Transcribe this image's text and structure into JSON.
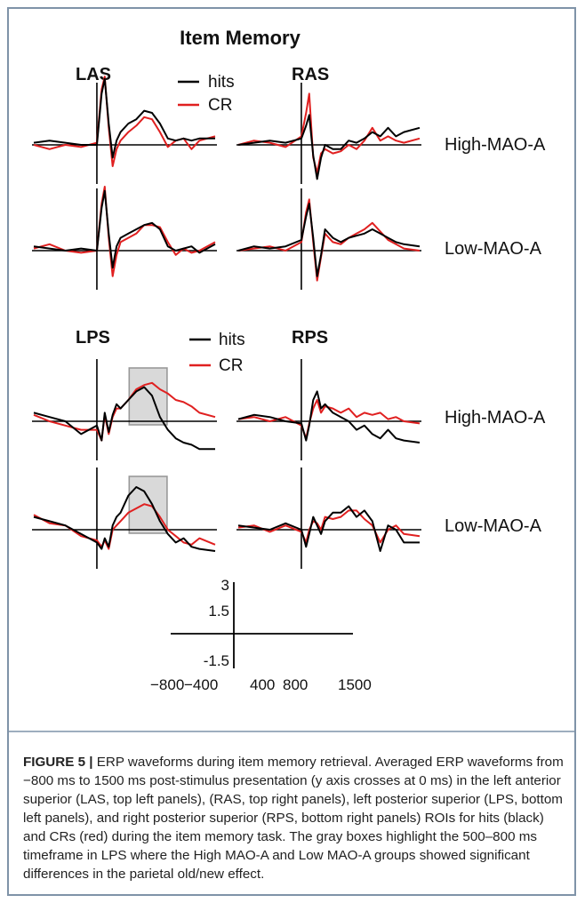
{
  "title": "Item Memory",
  "legend": {
    "hits": "hits",
    "cr": "CR"
  },
  "colors": {
    "hits": "#000000",
    "cr": "#e02020",
    "roi_box": "#d9d9d9",
    "frame": "#7f93a8"
  },
  "regions": {
    "las": "LAS",
    "ras": "RAS",
    "lps": "LPS",
    "rps": "RPS"
  },
  "groups": {
    "high": "High-MAO-A",
    "low": "Low-MAO-A"
  },
  "scale_bar": {
    "y_ticks": [
      "3",
      "1.5",
      "-1.5"
    ],
    "x_ticks": [
      "−800",
      "−400",
      "400",
      "800",
      "1500"
    ]
  },
  "caption": {
    "label": "FIGURE 5 |",
    "text": " ERP waveforms during item memory retrieval. Averaged ERP waveforms from −800 ms to 1500 ms post-stimulus presentation (y axis crosses at 0 ms) in the left anterior superior (LAS, top left panels), (RAS, top right panels), left posterior superior (LPS, bottom left panels), and right posterior superior (RPS, bottom right panels) ROIs for hits (black) and CRs (red) during the item memory task. The gray boxes highlight the 500–800 ms timeframe in LPS where the High MAO-A and Low MAO-A groups showed significant differences in the parietal old/new effect."
  },
  "chart_data": {
    "type": "line",
    "x_range_ms": [
      -800,
      1500
    ],
    "x_label": "",
    "y_label": "",
    "roi_highlight_ms": [
      500,
      800
    ],
    "panels": [
      {
        "region": "LAS",
        "group": "High-MAO-A",
        "x": [
          -800,
          -600,
          -400,
          -200,
          0,
          60,
          100,
          150,
          200,
          250,
          300,
          400,
          500,
          600,
          700,
          800,
          900,
          1000,
          1100,
          1200,
          1300,
          1500
        ],
        "series": [
          {
            "name": "hits",
            "values": [
              0.1,
              0.2,
              0.1,
              0.0,
              0.0,
              2.4,
              3.1,
              1.0,
              -0.6,
              0.2,
              0.6,
              1.0,
              1.2,
              1.6,
              1.5,
              1.0,
              0.3,
              0.2,
              0.3,
              0.2,
              0.3,
              0.3
            ]
          },
          {
            "name": "CR",
            "values": [
              0.0,
              -0.2,
              0.0,
              -0.1,
              0.1,
              2.6,
              3.2,
              0.8,
              -1.0,
              -0.2,
              0.2,
              0.6,
              0.9,
              1.3,
              1.2,
              0.6,
              -0.1,
              0.2,
              0.3,
              -0.2,
              0.2,
              0.4
            ]
          }
        ]
      },
      {
        "region": "RAS",
        "group": "High-MAO-A",
        "x": [
          -800,
          -600,
          -400,
          -200,
          0,
          60,
          100,
          150,
          200,
          250,
          300,
          400,
          500,
          600,
          700,
          800,
          900,
          1000,
          1100,
          1200,
          1300,
          1500
        ],
        "series": [
          {
            "name": "hits",
            "values": [
              0.0,
              0.1,
              0.2,
              0.1,
              0.3,
              0.9,
              1.4,
              -0.5,
              -1.6,
              -0.6,
              0.0,
              -0.2,
              -0.2,
              0.2,
              0.1,
              0.3,
              0.6,
              0.4,
              0.8,
              0.4,
              0.6,
              0.8
            ]
          },
          {
            "name": "CR",
            "values": [
              0.0,
              0.2,
              0.1,
              -0.1,
              0.4,
              1.5,
              2.4,
              -0.6,
              -1.3,
              -0.4,
              -0.2,
              -0.4,
              -0.3,
              0.0,
              -0.2,
              0.2,
              0.8,
              0.2,
              0.4,
              0.2,
              0.1,
              0.3
            ]
          }
        ]
      },
      {
        "region": "LAS",
        "group": "Low-MAO-A",
        "x": [
          -800,
          -600,
          -400,
          -200,
          0,
          60,
          100,
          150,
          200,
          250,
          300,
          400,
          500,
          600,
          700,
          800,
          900,
          1000,
          1100,
          1200,
          1300,
          1500
        ],
        "series": [
          {
            "name": "hits",
            "values": [
              0.2,
              0.1,
              0.0,
              0.1,
              0.0,
              2.0,
              2.8,
              0.8,
              -0.8,
              0.2,
              0.6,
              0.8,
              1.0,
              1.2,
              1.3,
              1.0,
              0.2,
              0.0,
              0.1,
              0.2,
              -0.1,
              0.3
            ]
          },
          {
            "name": "CR",
            "values": [
              0.1,
              0.3,
              0.0,
              -0.1,
              0.0,
              2.2,
              3.0,
              0.6,
              -1.2,
              -0.2,
              0.4,
              0.6,
              0.8,
              1.2,
              1.2,
              1.1,
              0.4,
              -0.2,
              0.1,
              -0.1,
              0.0,
              0.4
            ]
          }
        ]
      },
      {
        "region": "RAS",
        "group": "Low-MAO-A",
        "x": [
          -800,
          -600,
          -400,
          -200,
          0,
          60,
          100,
          150,
          200,
          250,
          300,
          400,
          500,
          600,
          700,
          800,
          900,
          1000,
          1100,
          1200,
          1300,
          1500
        ],
        "series": [
          {
            "name": "hits",
            "values": [
              0.0,
              0.2,
              0.1,
              0.2,
              0.5,
              1.6,
              2.2,
              0.6,
              -1.2,
              -0.2,
              1.0,
              0.6,
              0.4,
              0.6,
              0.7,
              0.8,
              1.0,
              0.8,
              0.6,
              0.4,
              0.3,
              0.2
            ]
          },
          {
            "name": "CR",
            "values": [
              0.0,
              0.1,
              0.2,
              0.0,
              0.4,
              1.8,
              2.4,
              0.4,
              -1.4,
              -0.3,
              0.8,
              0.4,
              0.3,
              0.6,
              0.8,
              1.0,
              1.3,
              0.9,
              0.5,
              0.3,
              0.1,
              0.0
            ]
          }
        ]
      },
      {
        "region": "LPS",
        "group": "High-MAO-A",
        "x": [
          -800,
          -600,
          -400,
          -200,
          0,
          60,
          100,
          150,
          200,
          250,
          300,
          400,
          500,
          600,
          700,
          800,
          900,
          1000,
          1100,
          1200,
          1300,
          1500
        ],
        "series": [
          {
            "name": "hits",
            "values": [
              0.4,
              0.2,
              0.0,
              -0.6,
              -0.2,
              -0.9,
              0.4,
              -0.5,
              0.3,
              0.8,
              0.6,
              1.0,
              1.4,
              1.6,
              1.2,
              0.2,
              -0.4,
              -0.8,
              -1.0,
              -1.1,
              -1.3,
              -1.3
            ]
          },
          {
            "name": "CR",
            "values": [
              0.3,
              0.0,
              -0.2,
              -0.4,
              -0.4,
              -0.9,
              0.3,
              -0.6,
              0.2,
              0.6,
              0.6,
              1.0,
              1.5,
              1.7,
              1.8,
              1.5,
              1.3,
              1.0,
              0.9,
              0.7,
              0.4,
              0.2
            ]
          }
        ]
      },
      {
        "region": "RPS",
        "group": "High-MAO-A",
        "x": [
          -800,
          -600,
          -400,
          -200,
          0,
          60,
          100,
          150,
          200,
          250,
          300,
          400,
          500,
          600,
          700,
          800,
          900,
          1000,
          1100,
          1200,
          1300,
          1500
        ],
        "series": [
          {
            "name": "hits",
            "values": [
              0.1,
              0.3,
              0.2,
              0.0,
              -0.1,
              -0.9,
              -0.2,
              1.0,
              1.4,
              0.6,
              0.8,
              0.4,
              0.2,
              0.0,
              -0.4,
              -0.2,
              -0.6,
              -0.8,
              -0.4,
              -0.8,
              -0.9,
              -1.0
            ]
          },
          {
            "name": "CR",
            "values": [
              0.1,
              0.2,
              0.0,
              0.2,
              -0.2,
              -0.8,
              -0.1,
              0.6,
              1.0,
              0.4,
              0.7,
              0.6,
              0.4,
              0.6,
              0.2,
              0.4,
              0.3,
              0.4,
              0.1,
              0.2,
              0.0,
              -0.1
            ]
          }
        ]
      },
      {
        "region": "LPS",
        "group": "Low-MAO-A",
        "x": [
          -800,
          -600,
          -400,
          -200,
          0,
          60,
          100,
          150,
          200,
          250,
          300,
          400,
          500,
          600,
          700,
          800,
          900,
          1000,
          1100,
          1200,
          1300,
          1500
        ],
        "series": [
          {
            "name": "hits",
            "values": [
              0.6,
              0.4,
              0.2,
              -0.2,
              -0.6,
              -0.9,
              -0.4,
              -0.8,
              0.2,
              0.6,
              0.8,
              1.6,
              2.0,
              1.8,
              1.2,
              0.4,
              -0.2,
              -0.6,
              -0.4,
              -0.8,
              -0.9,
              -1.0
            ]
          },
          {
            "name": "CR",
            "values": [
              0.7,
              0.3,
              0.2,
              -0.3,
              -0.5,
              -0.8,
              -0.5,
              -0.9,
              0.0,
              0.2,
              0.4,
              0.8,
              1.0,
              1.2,
              1.1,
              0.6,
              0.0,
              -0.3,
              -0.6,
              -0.7,
              -0.4,
              -0.7
            ]
          }
        ]
      },
      {
        "region": "RPS",
        "group": "Low-MAO-A",
        "x": [
          -800,
          -600,
          -400,
          -200,
          0,
          60,
          100,
          150,
          200,
          250,
          300,
          400,
          500,
          600,
          700,
          800,
          900,
          1000,
          1100,
          1200,
          1300,
          1500
        ],
        "series": [
          {
            "name": "hits",
            "values": [
              0.2,
              0.1,
              0.0,
              0.3,
              0.0,
              -0.8,
              -0.2,
              0.6,
              0.2,
              -0.2,
              0.4,
              0.8,
              0.8,
              1.1,
              0.6,
              0.9,
              0.4,
              -1.0,
              0.2,
              0.0,
              -0.6,
              -0.6
            ]
          },
          {
            "name": "CR",
            "values": [
              0.1,
              0.2,
              -0.1,
              0.2,
              -0.1,
              -0.6,
              0.0,
              0.4,
              0.3,
              0.0,
              0.6,
              0.5,
              0.6,
              0.9,
              0.9,
              0.5,
              0.2,
              -0.6,
              0.0,
              0.2,
              -0.2,
              -0.3
            ]
          }
        ]
      }
    ]
  }
}
